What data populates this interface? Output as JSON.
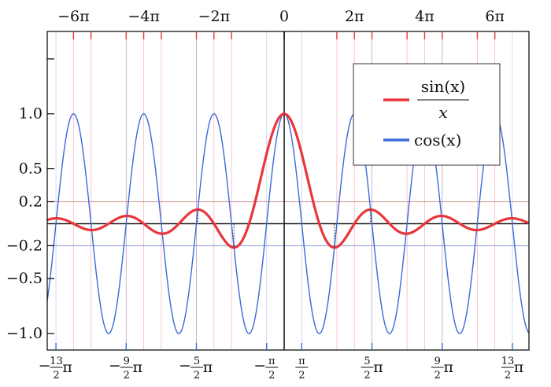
{
  "chart_data": {
    "type": "line",
    "xlim": [
      -21.2,
      21.9
    ],
    "ylim": [
      -1.15,
      1.75
    ],
    "grid": false,
    "legend_placement": "top-right",
    "top_ticks": [
      {
        "x": -18.85,
        "label": "−6π"
      },
      {
        "x": -12.566,
        "label": "−4π"
      },
      {
        "x": -6.283,
        "label": "−2π"
      },
      {
        "x": 0,
        "label": "0"
      },
      {
        "x": 6.283,
        "label": "2π"
      },
      {
        "x": 12.566,
        "label": "4π"
      },
      {
        "x": 18.85,
        "label": "6π"
      }
    ],
    "y_ticks": [
      {
        "y": 1.0,
        "label": "1.0"
      },
      {
        "y": 0.5,
        "label": "0.5"
      },
      {
        "y": 0.2,
        "label": "0.2"
      },
      {
        "y": -0.2,
        "label": "−0.2"
      },
      {
        "y": -0.5,
        "label": "−0.5"
      },
      {
        "y": -1.0,
        "label": "−1.0"
      }
    ],
    "bottom_ticks": [
      {
        "x": -20.42,
        "sign": "−",
        "num": "13",
        "den": "2",
        "pi": "π"
      },
      {
        "x": -14.137,
        "sign": "−",
        "num": "9",
        "den": "2",
        "pi": "π"
      },
      {
        "x": -7.854,
        "sign": "−",
        "num": "5",
        "den": "2",
        "pi": "π"
      },
      {
        "x": -1.571,
        "sign": "−",
        "num": "π",
        "den": "2",
        "pi": ""
      },
      {
        "x": 1.571,
        "sign": "",
        "num": "π",
        "den": "2",
        "pi": ""
      },
      {
        "x": 7.854,
        "sign": "",
        "num": "5",
        "den": "2",
        "pi": "π"
      },
      {
        "x": 14.137,
        "sign": "",
        "num": "9",
        "den": "2",
        "pi": "π"
      },
      {
        "x": 20.42,
        "sign": "",
        "num": "13",
        "den": "2",
        "pi": "π"
      }
    ],
    "series": [
      {
        "name_num": "sin(x)",
        "name_den": "x",
        "function": "sin(x)/x",
        "color": "#e8363b",
        "width": 3.2
      },
      {
        "name": "cos(x)",
        "function": "cos(x)",
        "color": "#3b6ad9",
        "width": 1.4
      }
    ],
    "minor_x_lines": [
      -17.28,
      -14.137,
      -10.996,
      -7.854,
      -4.712,
      4.712,
      7.854,
      10.996,
      14.137,
      17.28
    ]
  }
}
